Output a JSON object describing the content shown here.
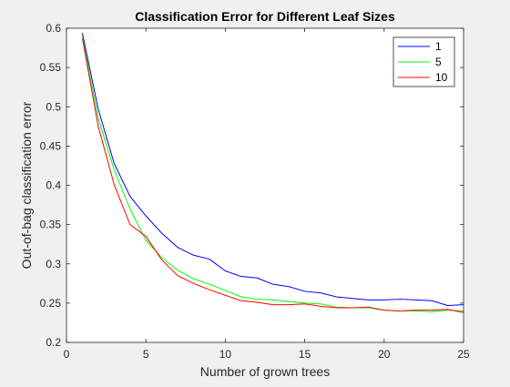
{
  "chart_data": {
    "type": "line",
    "title": "Classification Error for Different Leaf Sizes",
    "xlabel": "Number of grown trees",
    "ylabel": "Out-of-bag classification error",
    "xlim": [
      0,
      25
    ],
    "ylim": [
      0.2,
      0.6
    ],
    "xticks": [
      0,
      5,
      10,
      15,
      20,
      25
    ],
    "yticks": [
      0.2,
      0.25,
      0.3,
      0.35,
      0.4,
      0.45,
      0.5,
      0.55,
      0.6
    ],
    "grid": false,
    "legend_position": "top-right",
    "x": [
      1,
      2,
      3,
      4,
      5,
      6,
      7,
      8,
      9,
      10,
      11,
      12,
      13,
      14,
      15,
      16,
      17,
      18,
      19,
      20,
      21,
      22,
      23,
      24,
      25
    ],
    "series": [
      {
        "name": "1",
        "color": "#0000ff",
        "values": [
          0.594,
          0.497,
          0.428,
          0.386,
          0.361,
          0.339,
          0.321,
          0.311,
          0.306,
          0.291,
          0.284,
          0.282,
          0.274,
          0.271,
          0.265,
          0.263,
          0.258,
          0.256,
          0.254,
          0.254,
          0.255,
          0.254,
          0.253,
          0.247,
          0.248
        ]
      },
      {
        "name": "5",
        "color": "#00ff00",
        "values": [
          0.59,
          0.485,
          0.42,
          0.37,
          0.33,
          0.308,
          0.292,
          0.281,
          0.274,
          0.266,
          0.258,
          0.255,
          0.254,
          0.252,
          0.25,
          0.249,
          0.245,
          0.244,
          0.244,
          0.241,
          0.24,
          0.24,
          0.239,
          0.241,
          0.24
        ]
      },
      {
        "name": "10",
        "color": "#ff0000",
        "values": [
          0.587,
          0.475,
          0.401,
          0.35,
          0.335,
          0.305,
          0.285,
          0.275,
          0.267,
          0.26,
          0.253,
          0.251,
          0.248,
          0.248,
          0.249,
          0.246,
          0.244,
          0.244,
          0.245,
          0.241,
          0.24,
          0.241,
          0.241,
          0.242,
          0.238
        ]
      }
    ]
  }
}
